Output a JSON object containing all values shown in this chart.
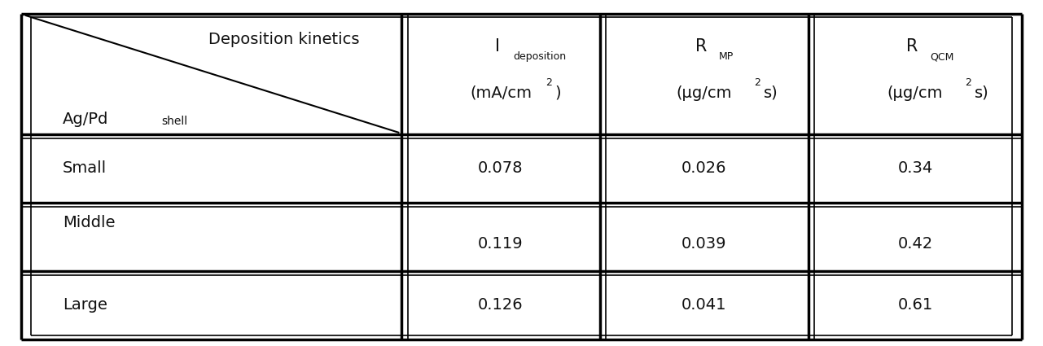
{
  "bg_color": "#ffffff",
  "text_color": "#111111",
  "outer_lw": 2.5,
  "inner_lw": 1.2,
  "sep_lw": 2.5,
  "font_size": 14,
  "font_size_sub": 9,
  "rows": [
    {
      "label": "Small",
      "v1": "0.078",
      "v2": "0.026",
      "v3": "0.34"
    },
    {
      "label": "Middle",
      "v1": "0.119",
      "v2": "0.039",
      "v3": "0.42"
    },
    {
      "label": "Large",
      "v1": "0.126",
      "v2": "0.041",
      "v3": "0.61"
    }
  ]
}
